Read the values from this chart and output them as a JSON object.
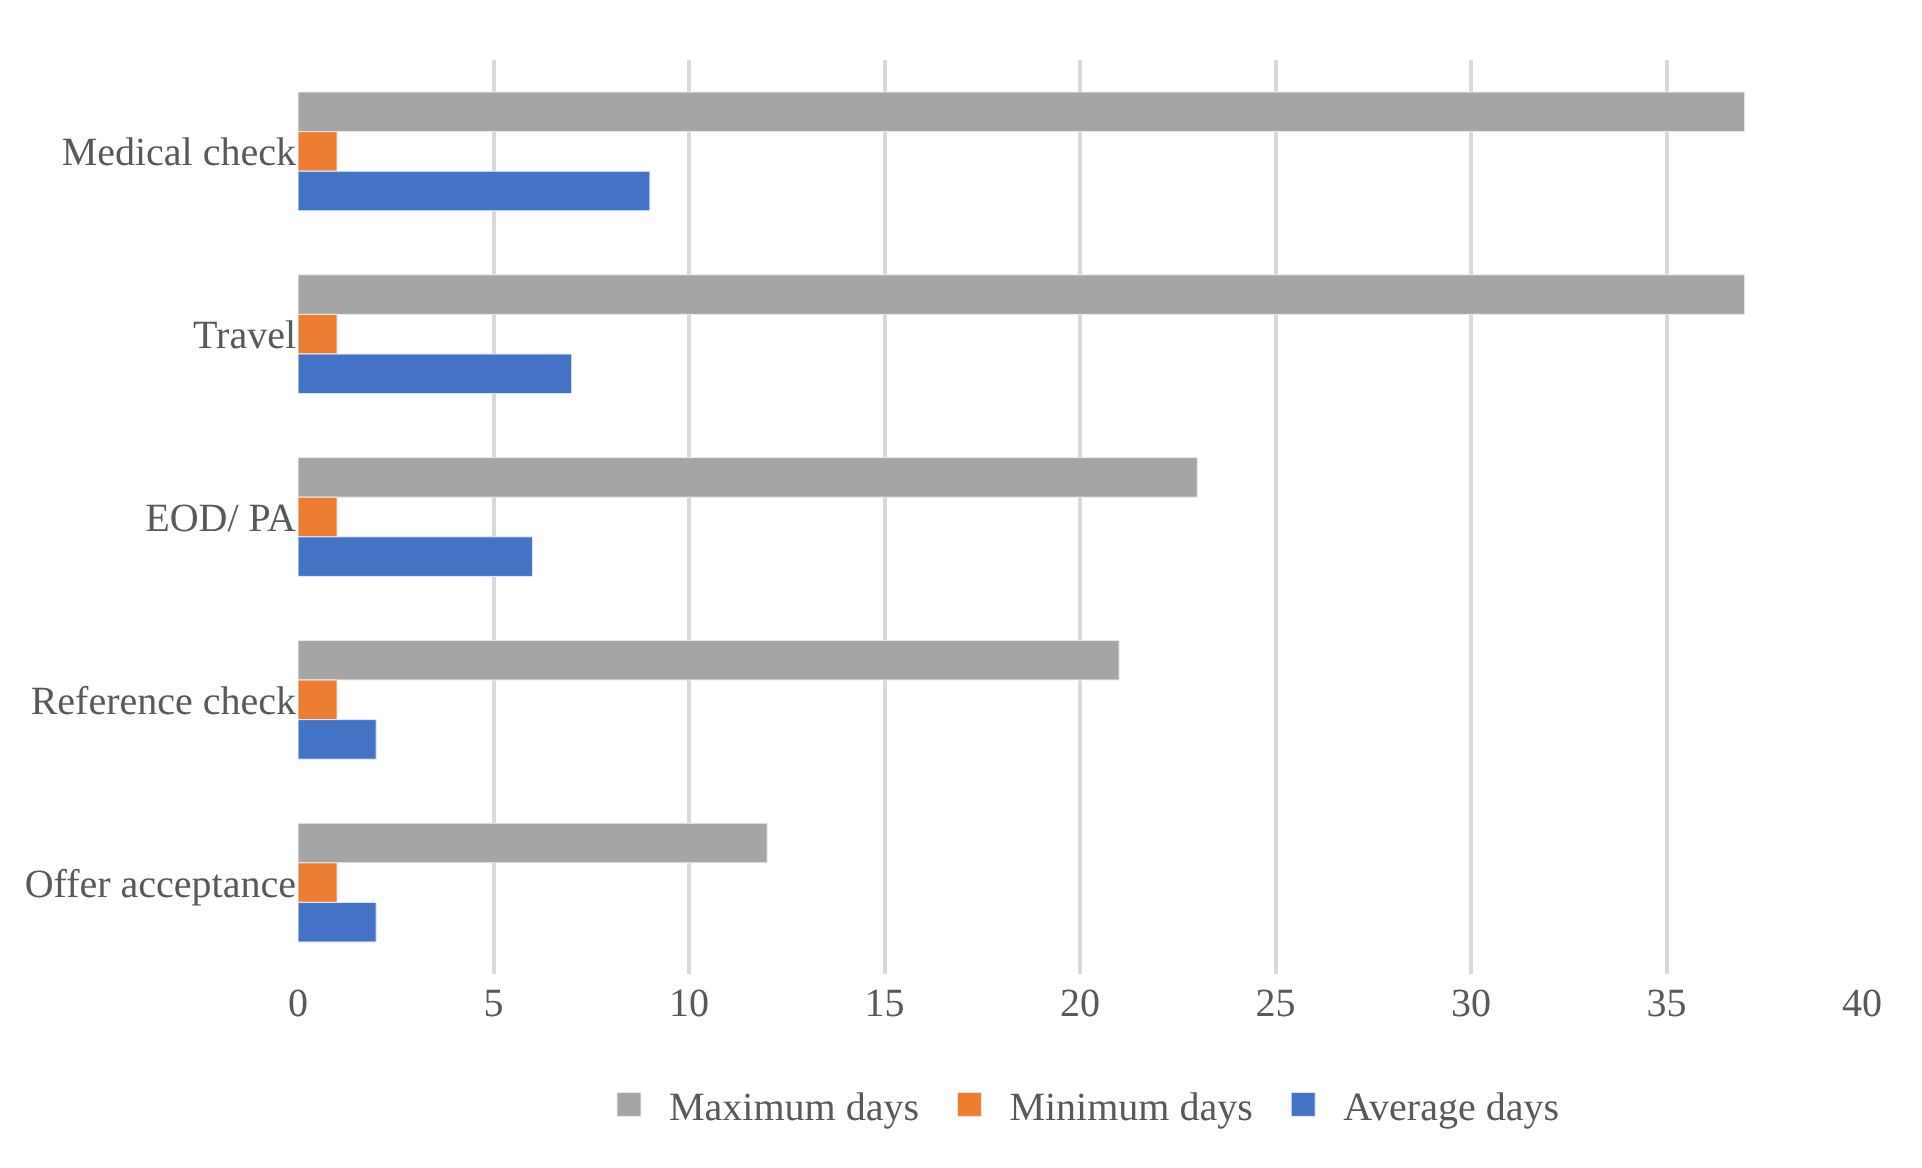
{
  "chart_data": {
    "type": "bar",
    "orientation": "horizontal",
    "categories": [
      "Medical check",
      "Travel",
      "EOD/ PA",
      "Reference check",
      "Offer acceptance"
    ],
    "series": [
      {
        "name": "Maximum days",
        "color": "#a5a5a5",
        "values": [
          37,
          37,
          23,
          21,
          12
        ]
      },
      {
        "name": "Minimum days",
        "color": "#ed7d31",
        "values": [
          1,
          1,
          1,
          1,
          1
        ]
      },
      {
        "name": "Average days",
        "color": "#4472c4",
        "values": [
          9,
          7,
          6,
          2,
          2
        ]
      }
    ],
    "xlim": [
      0,
      40
    ],
    "xticks": [
      0,
      5,
      10,
      15,
      20,
      25,
      30,
      35,
      40
    ],
    "grid": "x",
    "legend": "bottom"
  }
}
